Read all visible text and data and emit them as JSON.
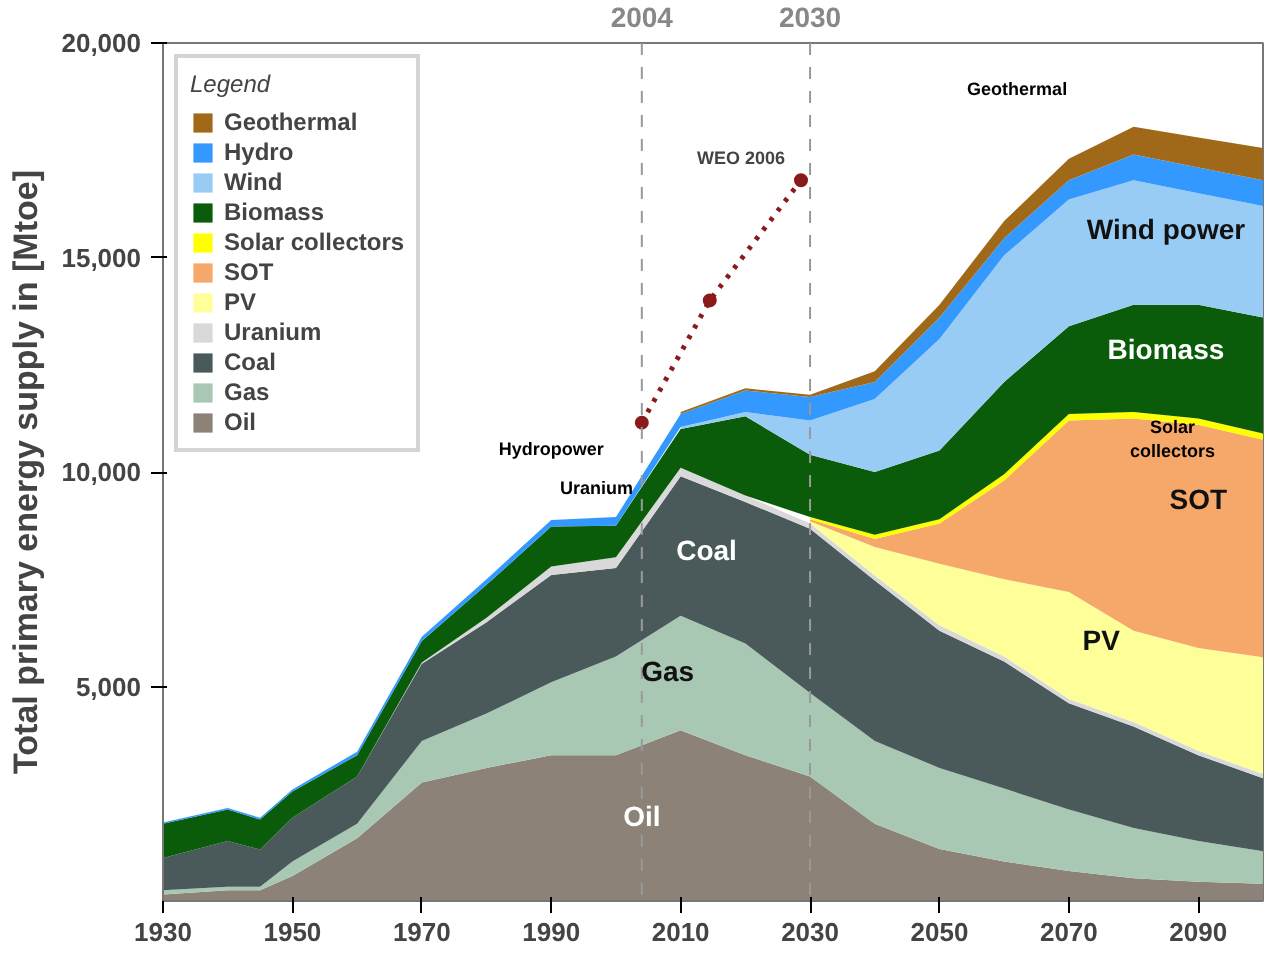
{
  "chart_data": {
    "type": "area",
    "stacked": true,
    "ylabel": "Total primary energy supply in [Mtoe]",
    "legend_title": "Legend",
    "legend": "top left",
    "grid": false,
    "x": [
      1930,
      1940,
      1945,
      1950,
      1960,
      1970,
      1980,
      1990,
      2000,
      2010,
      2020,
      2030,
      2040,
      2050,
      2060,
      2070,
      2080,
      2090,
      2100
    ],
    "xlim": [
      1930,
      2100
    ],
    "xticks": [
      1930,
      1950,
      1970,
      1990,
      2010,
      2030,
      2050,
      2070,
      2090
    ],
    "ylim": [
      0,
      20000
    ],
    "yticks": [
      {
        "value": 5000,
        "label": "5,000"
      },
      {
        "value": 10000,
        "label": "10,000"
      },
      {
        "value": 15000,
        "label": "15,000"
      },
      {
        "value": 20000,
        "label": "20,000"
      }
    ],
    "series": [
      {
        "name": "Oil",
        "color": "#8c8278",
        "values": [
          150,
          250,
          250,
          580,
          1460,
          2760,
          3100,
          3400,
          3400,
          3980,
          3400,
          2900,
          1800,
          1210,
          920,
          700,
          530,
          450,
          400
        ]
      },
      {
        "name": "Gas",
        "color": "#a8c8b4",
        "values": [
          100,
          80,
          80,
          340,
          340,
          970,
          1270,
          1700,
          2300,
          2670,
          2600,
          1950,
          1930,
          1890,
          1700,
          1430,
          1170,
          950,
          760
        ]
      },
      {
        "name": "Coal",
        "color": "#4a5a5a",
        "values": [
          750,
          1070,
          870,
          1020,
          1100,
          1800,
          2130,
          2500,
          2060,
          3250,
          3300,
          3830,
          3740,
          3200,
          2960,
          2480,
          2370,
          2000,
          1700
        ]
      },
      {
        "name": "Uranium",
        "color": "#d9d9d9",
        "values": [
          null,
          null,
          null,
          null,
          null,
          30,
          100,
          200,
          250,
          200,
          150,
          120,
          120,
          130,
          120,
          100,
          100,
          100,
          100
        ]
      },
      {
        "name": "PV",
        "color": "#ffff99",
        "values": [
          null,
          null,
          null,
          null,
          null,
          null,
          null,
          null,
          null,
          null,
          null,
          50,
          660,
          1430,
          1800,
          2490,
          2130,
          2400,
          2720
        ]
      },
      {
        "name": "SOT",
        "color": "#f5a86a",
        "values": [
          null,
          null,
          null,
          null,
          null,
          null,
          null,
          null,
          null,
          null,
          null,
          50,
          190,
          940,
          2300,
          4000,
          4950,
          5200,
          5070
        ]
      },
      {
        "name": "Solar collectors",
        "color": "#ffff00",
        "values": [
          null,
          null,
          null,
          null,
          null,
          null,
          null,
          null,
          null,
          null,
          null,
          50,
          100,
          100,
          150,
          150,
          150,
          150,
          150
        ]
      },
      {
        "name": "Biomass",
        "color": "#0a5c0a",
        "values": [
          800,
          730,
          700,
          610,
          500,
          500,
          770,
          930,
          740,
          900,
          1850,
          1450,
          1460,
          1600,
          2150,
          2050,
          2500,
          2650,
          2700
        ]
      },
      {
        "name": "Wind",
        "color": "#99ccf5",
        "values": [
          null,
          null,
          null,
          null,
          null,
          null,
          null,
          null,
          null,
          50,
          100,
          800,
          1700,
          2600,
          2950,
          2950,
          2900,
          2600,
          2600
        ]
      },
      {
        "name": "Hydro",
        "color": "#3399ff",
        "values": [
          30,
          40,
          40,
          50,
          80,
          100,
          130,
          150,
          200,
          300,
          500,
          550,
          400,
          500,
          400,
          450,
          600,
          600,
          600
        ]
      },
      {
        "name": "Geothermal",
        "color": "#a0691a",
        "values": [
          null,
          null,
          null,
          null,
          null,
          null,
          null,
          null,
          null,
          50,
          50,
          50,
          250,
          300,
          400,
          500,
          650,
          700,
          750
        ]
      },
      {
        "name": "WEO 2006",
        "type": "line",
        "color": "#8b1a1a",
        "x": [
          2004,
          2014.5,
          2028.6
        ],
        "values": [
          11150,
          14000,
          16800
        ],
        "line_style": "dotted",
        "marker": "circle"
      }
    ],
    "ref_lines": [
      {
        "axis": "x",
        "value": 2004,
        "label": "2004",
        "color": "#999999",
        "line_style": "dashed"
      },
      {
        "axis": "x",
        "value": 2030,
        "label": "2030",
        "color": "#999999",
        "line_style": "dashed"
      }
    ],
    "annotations": [
      "Geothermal",
      "Wind power",
      "Biomass",
      "Solar\ncollectors",
      "SOT",
      "PV",
      "Coal",
      "Gas",
      "Oil",
      "Hydropower",
      "Uranium"
    ]
  }
}
